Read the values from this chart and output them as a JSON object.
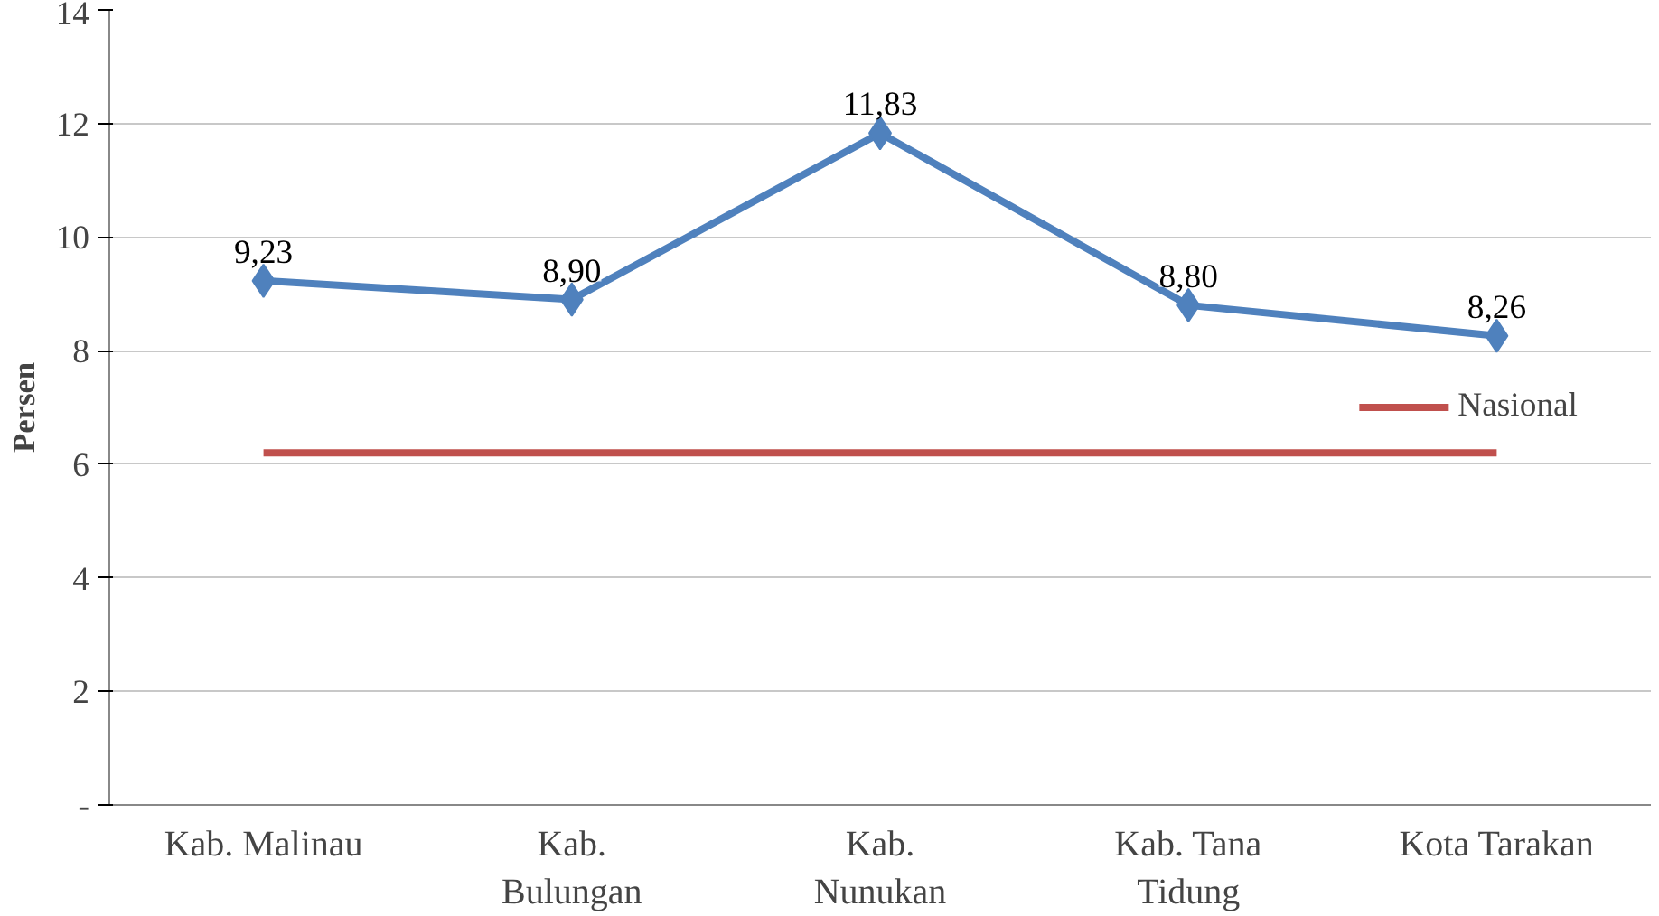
{
  "chart_data": {
    "type": "line",
    "ylabel": "Persen",
    "categories": [
      "Kab. Malinau",
      "Kab.\nBulungan",
      "Kab.\nNunukan",
      "Kab. Tana\nTidung",
      "Kota Tarakan"
    ],
    "series": [
      {
        "color": "#4f81bd",
        "values": [
          9.23,
          8.9,
          11.83,
          8.8,
          8.26
        ],
        "value_labels": [
          "9,23",
          "8,90",
          "11,83",
          "8,80",
          "8,26"
        ],
        "marker": "diamond"
      },
      {
        "name": "Nasional",
        "color": "#c0504d",
        "values": [
          6.2,
          6.2,
          6.2,
          6.2,
          6.2
        ],
        "marker": "none"
      }
    ],
    "ylim": [
      0,
      14
    ],
    "yticks": [
      {
        "value": 0,
        "label": "-"
      },
      2,
      4,
      6,
      8,
      10,
      12,
      14
    ],
    "grid": "y",
    "legend": "right",
    "line_style": "solid"
  }
}
